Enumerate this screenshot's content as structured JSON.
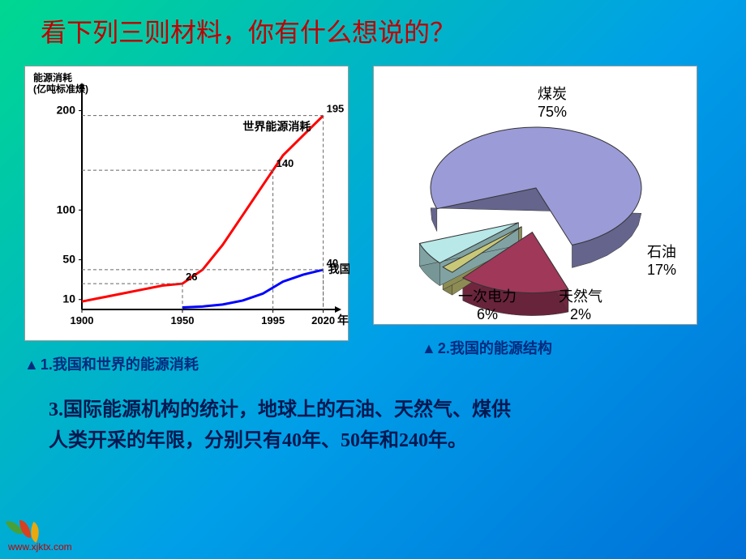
{
  "slide": {
    "background_gradient": [
      "#00d890",
      "#009fe8",
      "#0070d8"
    ],
    "title": "看下列三则材料，你有什么想说的？",
    "title_color": "#c00000"
  },
  "line_chart": {
    "type": "line",
    "y_axis_title_l1": "能源消耗",
    "y_axis_title_l2": "(亿吨标准煤)",
    "x_axis_title": "年",
    "x_ticks": [
      1900,
      1950,
      1995,
      2020
    ],
    "y_ticks": [
      10,
      50,
      100,
      200
    ],
    "xlim": [
      1900,
      2025
    ],
    "ylim": [
      0,
      220
    ],
    "series": [
      {
        "name": "世界能源消耗",
        "color": "#ff0000",
        "line_width": 3,
        "points": [
          [
            1900,
            8
          ],
          [
            1910,
            12
          ],
          [
            1920,
            16
          ],
          [
            1930,
            20
          ],
          [
            1940,
            24
          ],
          [
            1950,
            26
          ],
          [
            1960,
            40
          ],
          [
            1970,
            65
          ],
          [
            1980,
            95
          ],
          [
            1990,
            125
          ],
          [
            1995,
            140
          ],
          [
            2000,
            155
          ],
          [
            2010,
            175
          ],
          [
            2020,
            195
          ]
        ],
        "annotations": [
          {
            "x": 1950,
            "y": 26,
            "label": "26"
          },
          {
            "x": 1995,
            "y": 140,
            "label": "140"
          },
          {
            "x": 2020,
            "y": 195,
            "label": "195"
          }
        ]
      },
      {
        "name": "我国",
        "color": "#0000ff",
        "line_width": 3,
        "points": [
          [
            1950,
            2
          ],
          [
            1960,
            3
          ],
          [
            1970,
            5
          ],
          [
            1980,
            9
          ],
          [
            1990,
            16
          ],
          [
            1995,
            22
          ],
          [
            2000,
            28
          ],
          [
            2010,
            35
          ],
          [
            2020,
            40
          ]
        ],
        "annotations": [
          {
            "x": 2020,
            "y": 40,
            "label": "40"
          }
        ]
      }
    ],
    "axis_color": "#000000",
    "dash_color": "#666666"
  },
  "pie_chart": {
    "type": "pie-3d-exploded",
    "slices": [
      {
        "label": "煤炭",
        "value": 75,
        "color": "#9b9bd8",
        "label_pos": "top"
      },
      {
        "label": "石油",
        "value": 17,
        "color": "#a0385a",
        "label_pos": "right"
      },
      {
        "label": "天然气",
        "value": 2,
        "color": "#c8c878",
        "label_pos": "bottom"
      },
      {
        "label": "一次电力",
        "value": 6,
        "color": "#b8e8e8",
        "label_pos": "bottom"
      }
    ],
    "background_color": "#ffffff",
    "text_color": "#000000",
    "label_fontsize": 18
  },
  "captions": {
    "left": "1.我国和世界的能源消耗",
    "right": "2.我国的能源结构",
    "marker": "▲",
    "color": "#002b7f"
  },
  "bottom_text": {
    "line1": "3.国际能源机构的统计，地球上的石油、天然气、煤供",
    "line2": "人类开采的年限，分别只有40年、50年和240年。",
    "color": "#001850"
  },
  "logo": {
    "text": "www.xjktx.com",
    "leaf_colors": [
      "#48a038",
      "#d84020",
      "#e8a810"
    ],
    "text_color": "#c00000"
  }
}
